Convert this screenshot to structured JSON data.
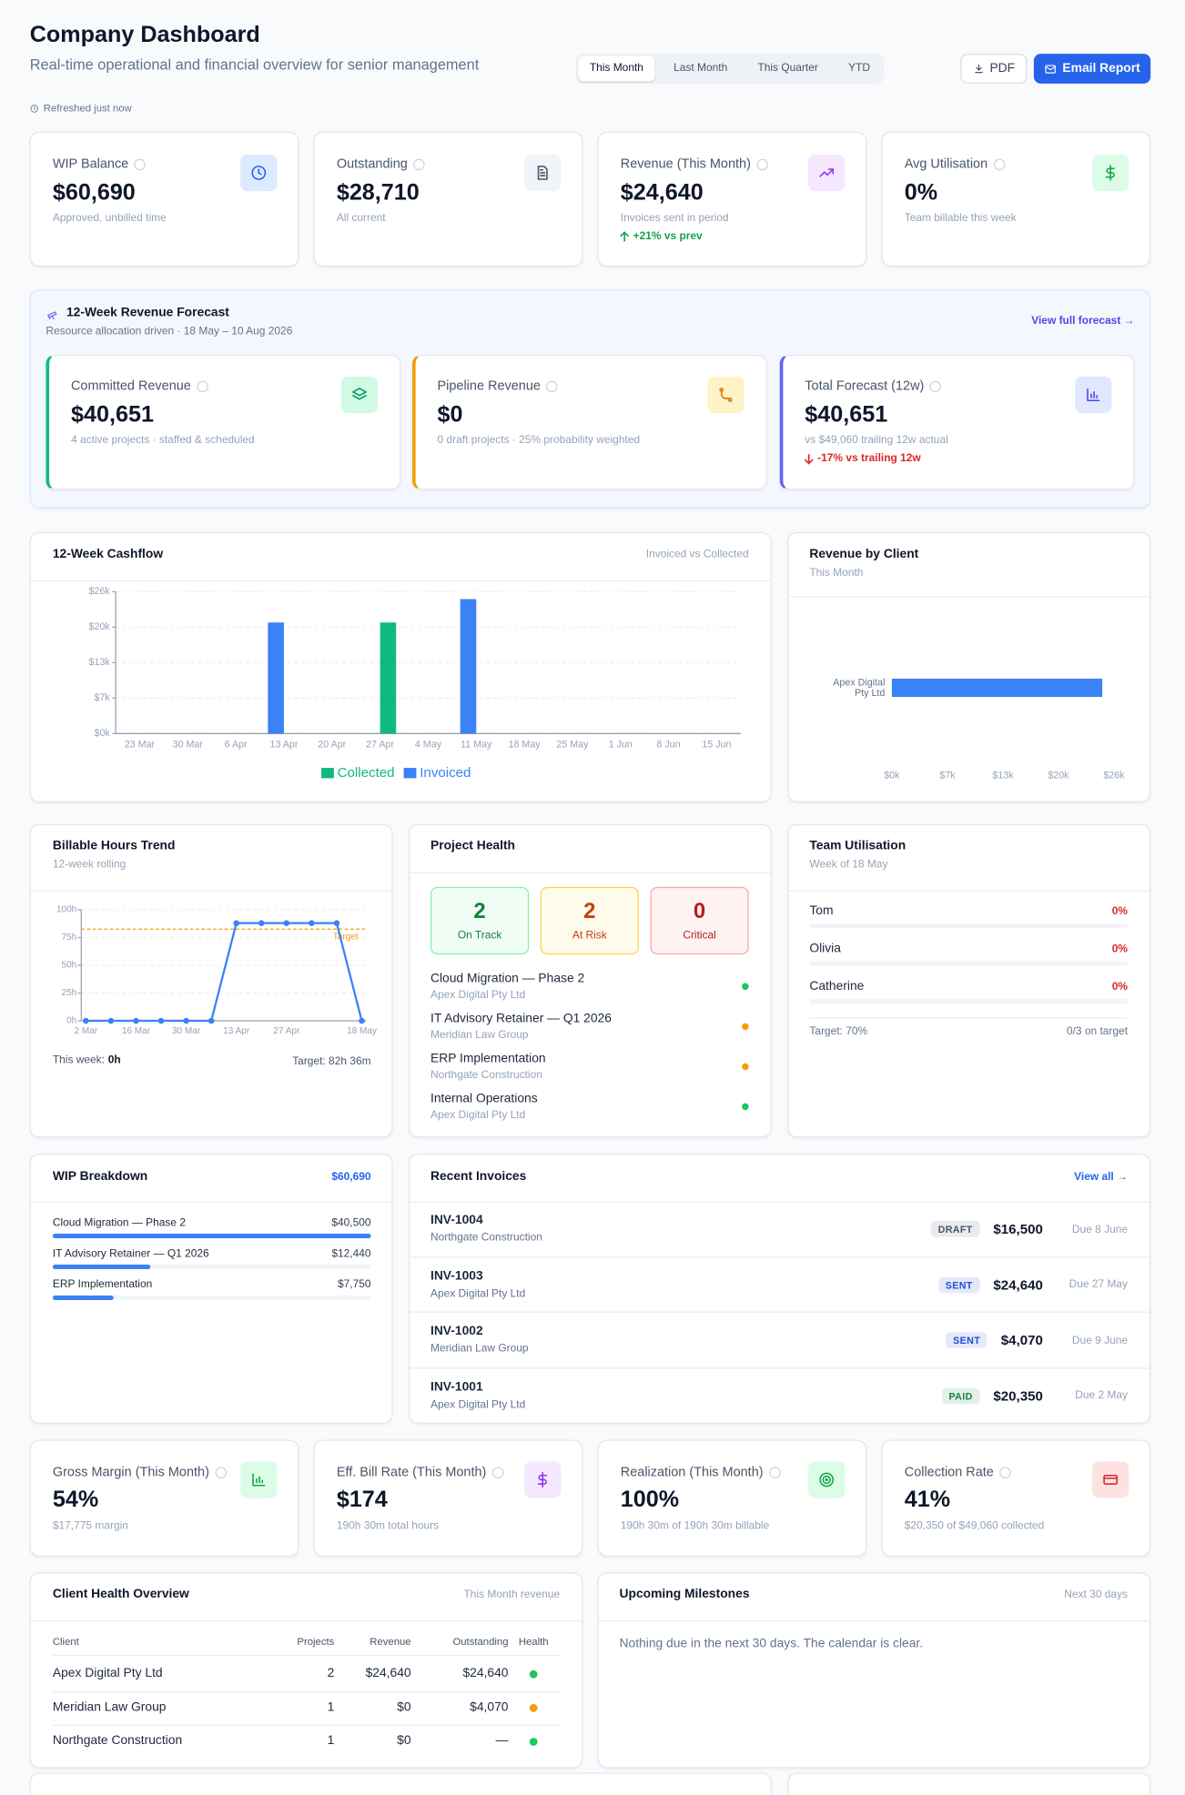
{
  "header": {
    "title": "Company Dashboard",
    "subtitle": "Real-time operational and financial overview for senior management",
    "periods": [
      "This Month",
      "Last Month",
      "This Quarter",
      "YTD"
    ],
    "active_period": 0,
    "buttons": [
      "PDF",
      "Email Report"
    ],
    "refreshed": "Refreshed just now"
  },
  "kpis": [
    {
      "label": "WIP Balance",
      "value": "$60,690",
      "note": "Approved, unbilled time"
    },
    {
      "label": "Outstanding",
      "value": "$28,710",
      "note": "All current"
    },
    {
      "label": "Revenue (This Month)",
      "value": "$24,640",
      "note": "Invoices sent in period",
      "change": "+21% vs prev"
    },
    {
      "label": "Avg Utilisation",
      "value": "0%",
      "note": "Team billable this week"
    }
  ],
  "forecast": {
    "title": "12-Week Revenue Forecast",
    "subtitle": "Resource allocation driven · 18 May – 10 Aug 2026",
    "link": "View full forecast →",
    "cards": [
      {
        "label": "Committed Revenue",
        "value": "$40,651",
        "note": "4 active projects · staffed & scheduled"
      },
      {
        "label": "Pipeline Revenue",
        "value": "$0",
        "note": "0 draft projects · 25% probability weighted"
      },
      {
        "label": "Total Forecast (12w)",
        "value": "$40,651",
        "note": "vs $49,060 trailing 12w actual",
        "change": "-17% vs trailing 12w"
      }
    ]
  },
  "cashflow": {
    "type": "bar",
    "title": "12-Week Cashflow",
    "subtitle": "Invoiced vs Collected",
    "categories": [
      "23 Mar",
      "30 Mar",
      "6 Apr",
      "13 Apr",
      "20 Apr",
      "27 Apr",
      "4 May",
      "11 May",
      "18 May",
      "25 May",
      "1 Jun",
      "8 Jun",
      "15 Jun"
    ],
    "series": [
      {
        "name": "Collected",
        "color": "#10b981",
        "values": [
          0,
          0,
          0,
          0,
          0,
          20350,
          0,
          0,
          0,
          0,
          0,
          0,
          0
        ]
      },
      {
        "name": "Invoiced",
        "color": "#3b82f6",
        "values": [
          0,
          0,
          0,
          20350,
          0,
          0,
          0,
          24640,
          0,
          0,
          0,
          0,
          0
        ]
      }
    ],
    "ylim": [
      0,
      26000
    ],
    "yticks": [
      {
        "value": 0,
        "label": "$0k"
      },
      {
        "value": 6500,
        "label": "$7k"
      },
      {
        "value": 13000,
        "label": "$13k"
      },
      {
        "value": 19500,
        "label": "$20k"
      },
      {
        "value": 26000,
        "label": "$26k"
      }
    ],
    "grid": true
  },
  "revenue_by_client": {
    "type": "bar",
    "orientation": "horizontal",
    "title": "Revenue by Client",
    "subtitle": "This Month",
    "categories": [
      "Apex Digital Pty Ltd"
    ],
    "values": [
      24640
    ],
    "color": "#3b82f6",
    "xlim": [
      0,
      26000
    ],
    "xticks": [
      {
        "value": 0,
        "label": "$0k"
      },
      {
        "value": 6500,
        "label": "$7k"
      },
      {
        "value": 13000,
        "label": "$13k"
      },
      {
        "value": 19500,
        "label": "$20k"
      },
      {
        "value": 26000,
        "label": "$26k"
      }
    ]
  },
  "billable_hours": {
    "type": "line",
    "title": "Billable Hours Trend",
    "subtitle": "12-week rolling",
    "categories": [
      "2 Mar",
      null,
      "16 Mar",
      null,
      "30 Mar",
      null,
      "13 Apr",
      null,
      "27 Apr",
      null,
      null,
      "18 May"
    ],
    "values": [
      0,
      0,
      0,
      0,
      0,
      0,
      88,
      88,
      88,
      88,
      88,
      0
    ],
    "color": "#3b82f6",
    "ylim": [
      0,
      100
    ],
    "yticks": [
      {
        "value": 0,
        "label": "0h"
      },
      {
        "value": 25,
        "label": "25h"
      },
      {
        "value": 50,
        "label": "50h"
      },
      {
        "value": 75,
        "label": "75h"
      },
      {
        "value": 100,
        "label": "100h"
      }
    ],
    "grid": true,
    "target": {
      "value": 82.6,
      "label": "Target",
      "color": "#f59e0b"
    },
    "footer": {
      "this_week_label": "This week:",
      "this_week": "0h",
      "target": "Target: 82h 36m"
    }
  },
  "project_health": {
    "title": "Project Health",
    "summary": [
      {
        "count": 2,
        "label": "On Track"
      },
      {
        "count": 2,
        "label": "At Risk"
      },
      {
        "count": 0,
        "label": "Critical"
      }
    ],
    "projects": [
      {
        "name": "Cloud Migration — Phase 2",
        "client": "Apex Digital Pty Ltd",
        "color": "#22c55e"
      },
      {
        "name": "IT Advisory Retainer — Q1 2026",
        "client": "Meridian Law Group",
        "color": "#f59e0b"
      },
      {
        "name": "ERP Implementation",
        "client": "Northgate Construction",
        "color": "#f59e0b"
      },
      {
        "name": "Internal Operations",
        "client": "Apex Digital Pty Ltd",
        "color": "#22c55e"
      }
    ]
  },
  "team_utilisation": {
    "title": "Team Utilisation",
    "subtitle": "Week of 18 May",
    "members": [
      "Tom",
      "Olivia",
      "Catherine"
    ],
    "values": [
      0,
      0,
      0
    ],
    "value_labels": [
      "0%",
      "0%",
      "0%"
    ],
    "target": "Target: 70%",
    "on_target": "0/3 on target"
  },
  "wip_breakdown": {
    "title": "WIP Breakdown",
    "total": "$60,690",
    "categories": [
      "Cloud Migration — Phase 2",
      "IT Advisory Retainer — Q1 2026",
      "ERP Implementation"
    ],
    "values": [
      40500,
      12440,
      7750
    ],
    "value_labels": [
      "$40,500",
      "$12,440",
      "$7,750"
    ],
    "color": "#3b82f6"
  },
  "recent_invoices": {
    "title": "Recent Invoices",
    "link": "View all →",
    "rows": [
      {
        "id": "INV-1004",
        "client": "Northgate Construction",
        "status": "DRAFT",
        "status_color": "#475569",
        "amount": "$16,500",
        "due": "Due 8 June"
      },
      {
        "id": "INV-1003",
        "client": "Apex Digital Pty Ltd",
        "status": "SENT",
        "status_color": "#1d4ed8",
        "amount": "$24,640",
        "due": "Due 27 May"
      },
      {
        "id": "INV-1002",
        "client": "Meridian Law Group",
        "status": "SENT",
        "status_color": "#1d4ed8",
        "amount": "$4,070",
        "due": "Due 9 June"
      },
      {
        "id": "INV-1001",
        "client": "Apex Digital Pty Ltd",
        "status": "PAID",
        "status_color": "#15803d",
        "amount": "$20,350",
        "due": "Due 2 May"
      }
    ]
  },
  "metrics": [
    {
      "label": "Gross Margin (This Month)",
      "value": "54%",
      "note": "$17,775 margin"
    },
    {
      "label": "Eff. Bill Rate (This Month)",
      "value": "$174",
      "note": "190h 30m total hours"
    },
    {
      "label": "Realization (This Month)",
      "value": "100%",
      "note": "190h 30m of 190h 30m billable"
    },
    {
      "label": "Collection Rate",
      "value": "41%",
      "note": "$20,350 of $49,060 collected"
    }
  ],
  "client_health": {
    "title": "Client Health Overview",
    "subtitle": "This Month revenue",
    "columns": [
      "Client",
      "Projects",
      "Revenue",
      "Outstanding",
      "Health"
    ],
    "rows": [
      {
        "client": "Apex Digital Pty Ltd",
        "projects": 2,
        "revenue": "$24,640",
        "outstanding": "$24,640",
        "health": "#22c55e"
      },
      {
        "client": "Meridian Law Group",
        "projects": 1,
        "revenue": "$0",
        "outstanding": "$4,070",
        "health": "#f59e0b"
      },
      {
        "client": "Northgate Construction",
        "projects": 1,
        "revenue": "$0",
        "outstanding": "—",
        "health": "#22c55e"
      }
    ]
  },
  "milestones": {
    "title": "Upcoming Milestones",
    "subtitle": "Next 30 days",
    "empty": "Nothing due in the next 30 days. The calendar is clear."
  }
}
